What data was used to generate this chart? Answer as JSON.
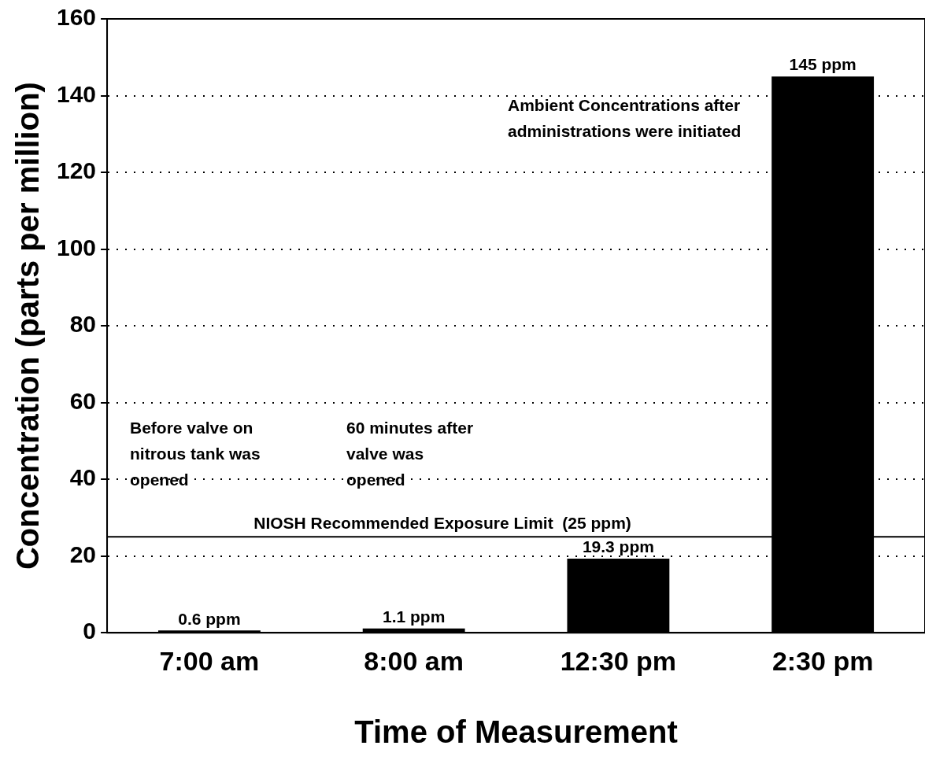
{
  "chart_data": {
    "type": "bar",
    "xlabel": "Time of Measurement",
    "ylabel": "Concentration (parts per million)",
    "categories": [
      "7:00 am",
      "8:00 am",
      "12:30 pm",
      "2:30 pm"
    ],
    "values": [
      0.6,
      1.1,
      19.3,
      145
    ],
    "value_labels": [
      "0.6 ppm",
      "1.1 ppm",
      "19.3 ppm",
      "145 ppm"
    ],
    "color": "#000000",
    "ylim": [
      0,
      160
    ],
    "yticks": [
      0,
      20,
      40,
      60,
      80,
      100,
      120,
      140,
      160
    ],
    "grid": "y",
    "legend": false,
    "ref_lines": [
      {
        "axis": "y",
        "value": 25,
        "label": "NIOSH Recommended Exposure Limit  (25 ppm)",
        "color": "#000000",
        "line_style": "solid"
      }
    ],
    "annotations": [
      "Before valve on nitrous tank was opened",
      "60 minutes after valve was opened",
      "Ambient Concentrations after administrations were initiated"
    ]
  }
}
